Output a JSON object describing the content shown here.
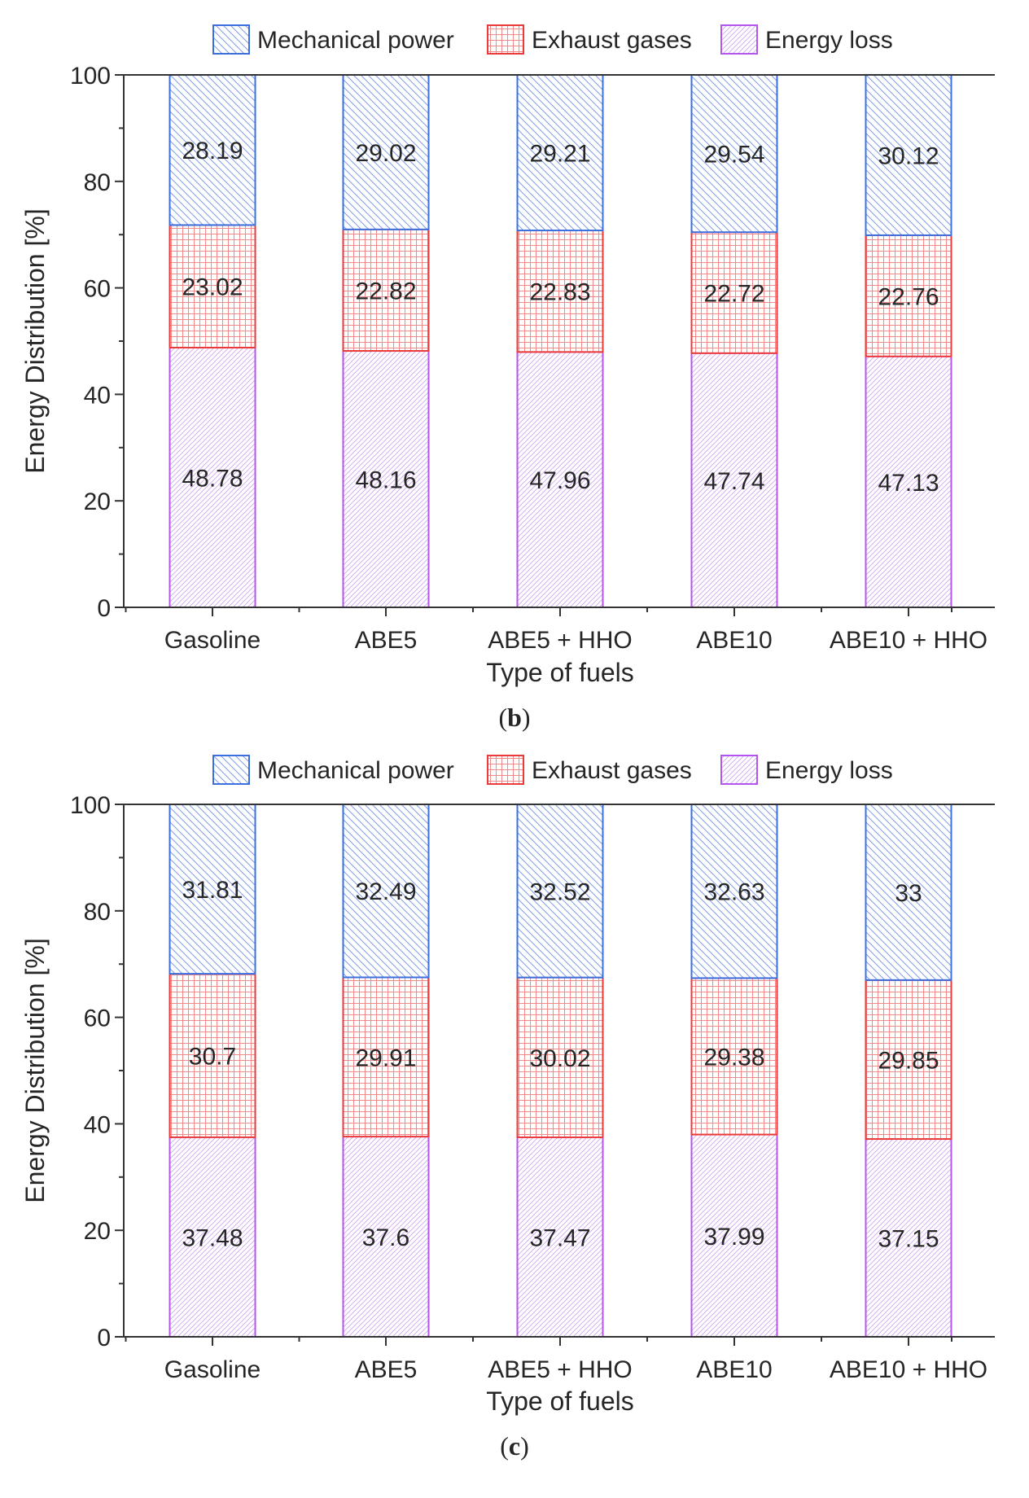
{
  "chart_data": [
    {
      "type": "bar",
      "stacked": true,
      "panel_label": "b",
      "xlabel": "Type of fuels",
      "ylabel": "Energy Distribution [%]",
      "ylim": [
        0,
        100
      ],
      "yticks": [
        0,
        20,
        40,
        60,
        80,
        100
      ],
      "categories": [
        "Gasoline",
        "ABE5",
        "ABE5 + HHO",
        "ABE10",
        "ABE10 + HHO"
      ],
      "legend_position": "top-center",
      "series": [
        {
          "name": "Energy loss",
          "color": "#b455ee",
          "pattern": "diag-fine",
          "values": [
            48.78,
            48.16,
            47.96,
            47.74,
            47.13
          ]
        },
        {
          "name": "Exhaust gases",
          "color": "#ec3a3a",
          "pattern": "grid",
          "values": [
            23.02,
            22.82,
            22.83,
            22.72,
            22.76
          ]
        },
        {
          "name": "Mechanical power",
          "color": "#3b6fe0",
          "pattern": "diag-back",
          "values": [
            28.19,
            29.02,
            29.21,
            29.54,
            30.12
          ]
        }
      ]
    },
    {
      "type": "bar",
      "stacked": true,
      "panel_label": "c",
      "xlabel": "Type of fuels",
      "ylabel": "Energy Distribution [%]",
      "ylim": [
        0,
        100
      ],
      "yticks": [
        0,
        20,
        40,
        60,
        80,
        100
      ],
      "categories": [
        "Gasoline",
        "ABE5",
        "ABE5 + HHO",
        "ABE10",
        "ABE10 + HHO"
      ],
      "legend_position": "top-center",
      "series": [
        {
          "name": "Energy loss",
          "color": "#b455ee",
          "pattern": "diag-fine",
          "values": [
            37.48,
            37.6,
            37.47,
            37.99,
            37.15
          ]
        },
        {
          "name": "Exhaust gases",
          "color": "#ec3a3a",
          "pattern": "grid",
          "values": [
            30.7,
            29.91,
            30.02,
            29.38,
            29.85
          ]
        },
        {
          "name": "Mechanical power",
          "color": "#3b6fe0",
          "pattern": "diag-back",
          "values": [
            31.81,
            32.49,
            32.52,
            32.63,
            33
          ]
        }
      ]
    }
  ],
  "legend_order": [
    "Mechanical power",
    "Exhaust gases",
    "Energy loss"
  ]
}
